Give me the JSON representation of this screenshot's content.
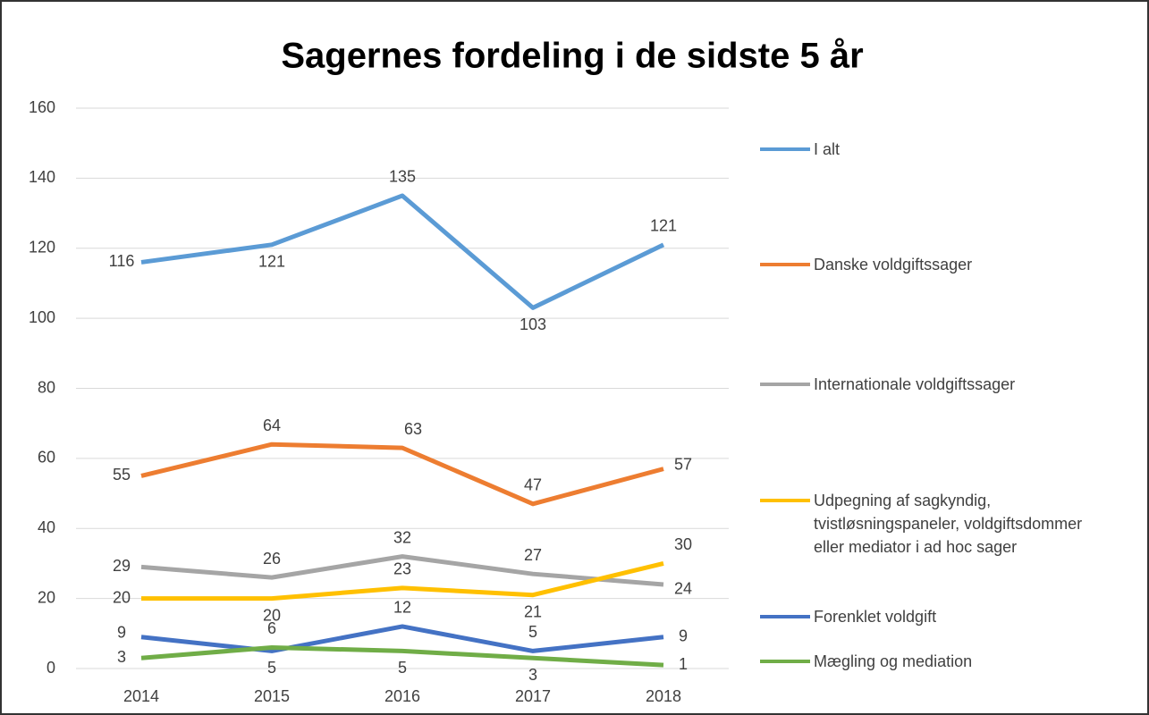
{
  "chart_data": {
    "type": "line",
    "title": "Sagernes fordeling i de sidste 5 år",
    "categories": [
      "2014",
      "2015",
      "2016",
      "2017",
      "2018"
    ],
    "series": [
      {
        "name": "I alt",
        "color": "#5b9bd5",
        "values": [
          116,
          121,
          135,
          103,
          121
        ]
      },
      {
        "name": "Danske voldgiftssager",
        "color": "#ed7d31",
        "values": [
          55,
          64,
          63,
          47,
          57
        ]
      },
      {
        "name": "Internationale voldgiftssager",
        "color": "#a5a5a5",
        "values": [
          29,
          26,
          32,
          27,
          24
        ]
      },
      {
        "name": "Udpegning af sagkyndig, tvistløsningspaneler, voldgiftsdommer eller mediator i ad hoc sager",
        "color": "#ffc000",
        "values": [
          20,
          20,
          23,
          21,
          30
        ]
      },
      {
        "name": "Forenklet voldgift",
        "color": "#4472c4",
        "values": [
          9,
          5,
          12,
          5,
          9
        ]
      },
      {
        "name": "Mægling og mediation",
        "color": "#70ad47",
        "values": [
          3,
          6,
          5,
          3,
          1
        ]
      }
    ],
    "ylim": [
      0,
      160
    ],
    "yticks": [
      0,
      20,
      40,
      60,
      80,
      100,
      120,
      140,
      160
    ],
    "grid": true,
    "legend": "right"
  }
}
